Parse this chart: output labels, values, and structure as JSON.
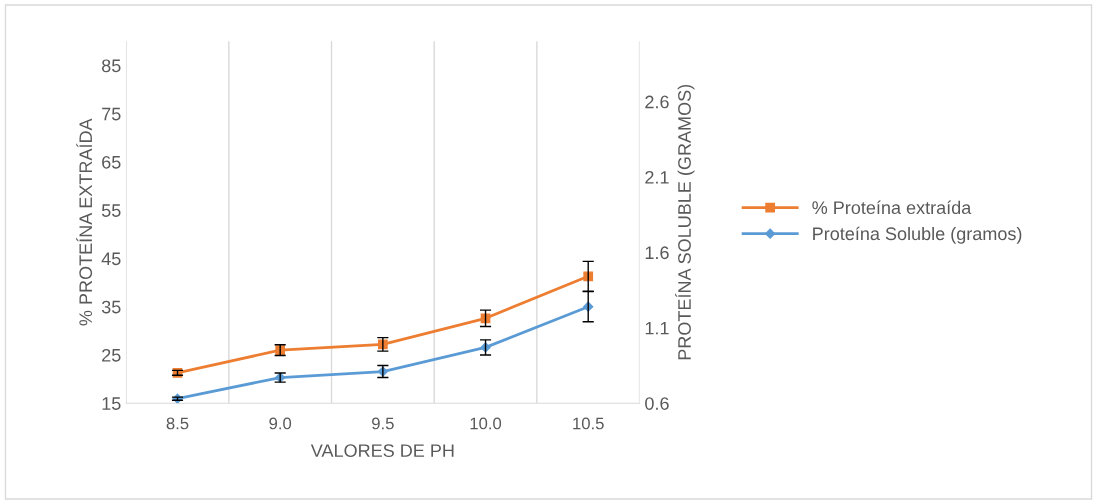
{
  "chart_data": {
    "type": "line",
    "xlabel": "VALORES DE PH",
    "ylabel": "% PROTEÍNA EXTRAÍDA",
    "y2label": "PROTEÍNA SOLUBLE (GRAMOS)",
    "categories": [
      "8.5",
      "9.0",
      "9.5",
      "10.0",
      "10.5"
    ],
    "series": [
      {
        "name": "% Proteína extraída",
        "color": "#ed7d31",
        "marker": "square",
        "values": [
          21.3,
          26.0,
          27.2,
          32.6,
          41.3
        ],
        "errors": [
          0.5,
          1.1,
          1.4,
          1.7,
          3.1
        ]
      },
      {
        "name": "Proteína Soluble (gramos)",
        "color": "#5b9bd5",
        "marker": "diamond",
        "axis": "y2",
        "values": [
          0.63,
          0.77,
          0.81,
          0.97,
          1.24
        ],
        "errors": [
          0.01,
          0.03,
          0.04,
          0.05,
          0.1
        ]
      }
    ],
    "ylim": [
      15,
      90
    ],
    "yticks": [
      15,
      25,
      35,
      45,
      55,
      65,
      75,
      85
    ],
    "y2lim": [
      0.6,
      3.0
    ],
    "y2ticks": [
      0.6,
      1.1,
      1.6,
      2.1,
      2.6
    ],
    "grid": "x",
    "legend": "right"
  }
}
